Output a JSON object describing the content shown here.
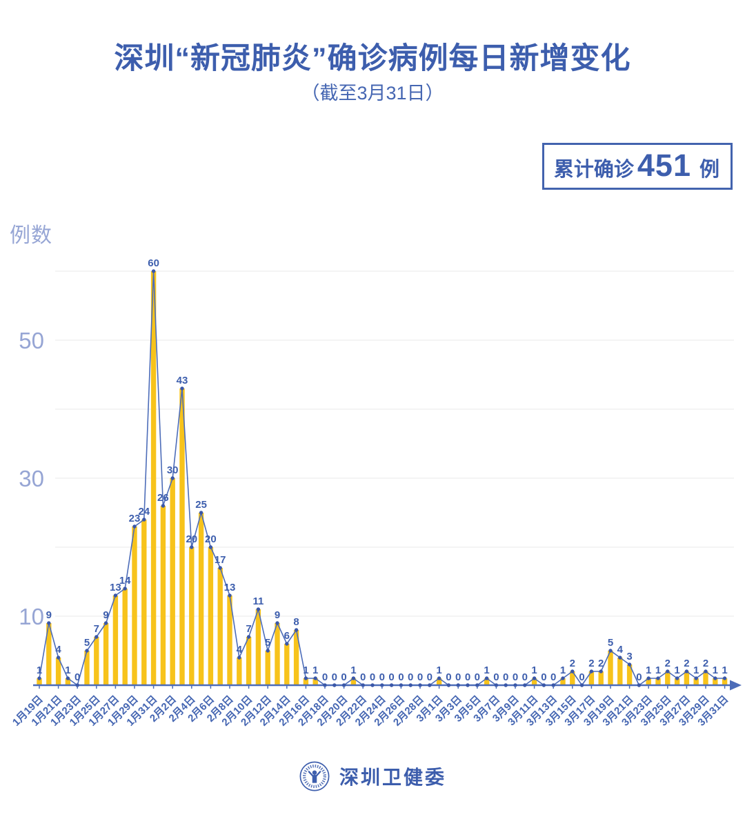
{
  "page": {
    "title": "深圳“新冠肺炎”确诊病例每日新增变化",
    "subtitle": "（截至3月31日）"
  },
  "badge": {
    "prefix": "累计确诊",
    "value": "451",
    "suffix": "例"
  },
  "footer": {
    "org_name": "深圳卫健委",
    "logo_icon": "shenzhen-health-commission-emblem"
  },
  "chart_data": {
    "type": "bar",
    "subtype": "bars-with-line-overlay-and-point-labels",
    "title": "深圳“新冠肺炎”确诊病例每日新增变化（截至3月31日）",
    "xlabel": "",
    "ylabel": "例数",
    "ylim": [
      0,
      62
    ],
    "yticks_labeled": [
      10,
      30,
      50
    ],
    "gridlines_y": [
      10,
      20,
      30,
      40,
      50,
      60
    ],
    "grid": "horizontal-only",
    "legend": "none",
    "x_tick_label_every": 2,
    "cumulative_total": 451,
    "categories": [
      "1月19日",
      "1月20日",
      "1月21日",
      "1月22日",
      "1月23日",
      "1月24日",
      "1月25日",
      "1月26日",
      "1月27日",
      "1月28日",
      "1月29日",
      "1月30日",
      "1月31日",
      "2月1日",
      "2月2日",
      "2月3日",
      "2月4日",
      "2月5日",
      "2月6日",
      "2月7日",
      "2月8日",
      "2月9日",
      "2月10日",
      "2月11日",
      "2月12日",
      "2月13日",
      "2月14日",
      "2月15日",
      "2月16日",
      "2月17日",
      "2月18日",
      "2月19日",
      "2月20日",
      "2月21日",
      "2月22日",
      "2月23日",
      "2月24日",
      "2月25日",
      "2月26日",
      "2月27日",
      "2月28日",
      "2月29日",
      "3月1日",
      "3月2日",
      "3月3日",
      "3月4日",
      "3月5日",
      "3月6日",
      "3月7日",
      "3月8日",
      "3月9日",
      "3月10日",
      "3月11日",
      "3月12日",
      "3月13日",
      "3月14日",
      "3月15日",
      "3月16日",
      "3月17日",
      "3月18日",
      "3月19日",
      "3月20日",
      "3月21日",
      "3月22日",
      "3月23日",
      "3月24日",
      "3月25日",
      "3月26日",
      "3月27日",
      "3月28日",
      "3月29日",
      "3月30日",
      "3月31日"
    ],
    "values": [
      1,
      9,
      4,
      1,
      0,
      5,
      7,
      9,
      13,
      14,
      23,
      24,
      60,
      26,
      30,
      43,
      20,
      25,
      20,
      17,
      13,
      4,
      7,
      11,
      5,
      9,
      6,
      8,
      1,
      1,
      0,
      0,
      0,
      1,
      0,
      0,
      0,
      0,
      0,
      0,
      0,
      0,
      1,
      0,
      0,
      0,
      0,
      1,
      0,
      0,
      0,
      0,
      1,
      0,
      0,
      1,
      2,
      0,
      2,
      2,
      5,
      4,
      3,
      0,
      1,
      1,
      2,
      1,
      2,
      1,
      2,
      1,
      1
    ],
    "colors": {
      "bar": "#F7C31B",
      "line": "#4C6CB8",
      "point": "#3A57A8",
      "value_label": "#3D5EAD",
      "axis": "#4C6CB8",
      "x_tick_label": "#4566B2",
      "y_tick_label": "#96A5D4",
      "gridline": "#E8E8E8"
    }
  }
}
